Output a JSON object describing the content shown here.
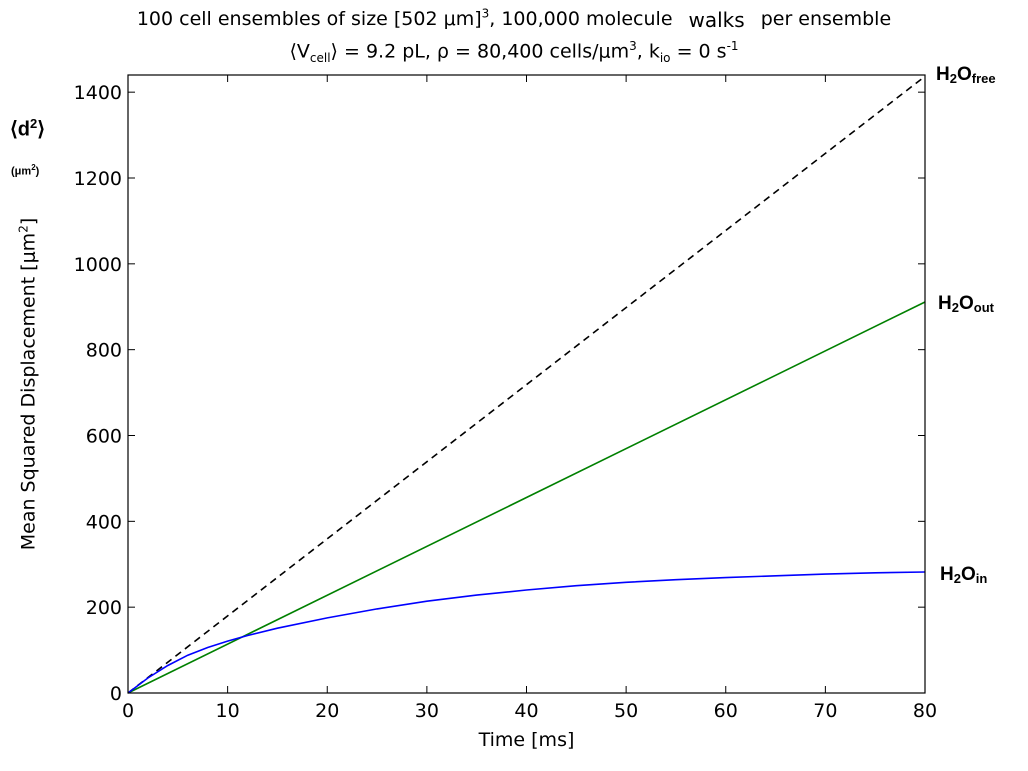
{
  "header": {
    "title_part1": "100 cell ensembles of size [502 μm]",
    "title_sup": "3",
    "title_part2": ", 100,000 molecule",
    "title_walks": "walks",
    "title_part3": "per ensemble",
    "subtitle_v_open": "⟨V",
    "subtitle_v_sub": "cell",
    "subtitle_v_close": "⟩ = 9.2 pL,  ρ = 80,400 cells/μm",
    "subtitle_rho_sup": "3",
    "subtitle_k": ",  k",
    "subtitle_k_sub": "io",
    "subtitle_k_val": " = 0 s",
    "subtitle_k_sup": "-1"
  },
  "annotations": {
    "d2_main": "⟨d",
    "d2_sup": "2",
    "d2_close": "⟩",
    "d2_unit_open": "(μm",
    "d2_unit_sup": "2",
    "d2_unit_close": ")"
  },
  "series_labels": {
    "free_main": "H",
    "free_sub2": "2",
    "free_O": "O",
    "free_sub": "free",
    "out_main": "H",
    "out_sub2": "2",
    "out_O": "O",
    "out_sub": "out",
    "in_main": "H",
    "in_sub2": "2",
    "in_O": "O",
    "in_sub": "in"
  },
  "chart_data": {
    "type": "line",
    "xlabel": "Time [ms]",
    "ylabel_main": "Mean Squared Displacement [μm",
    "ylabel_sup": "2",
    "ylabel_close": "]",
    "xlim": [
      0,
      80
    ],
    "ylim": [
      0,
      1440
    ],
    "xticks": [
      0,
      10,
      20,
      30,
      40,
      50,
      60,
      70,
      80
    ],
    "yticks": [
      0,
      200,
      400,
      600,
      800,
      1000,
      1200,
      1400
    ],
    "series": [
      {
        "color": "#000000",
        "dashed": true,
        "x": [
          0,
          80
        ],
        "y": [
          0,
          1437
        ]
      },
      {
        "color": "#008000",
        "dashed": false,
        "x": [
          0,
          80
        ],
        "y": [
          0,
          911
        ]
      },
      {
        "color": "#0000ff",
        "dashed": false,
        "x": [
          0,
          2,
          4,
          6,
          8,
          10,
          12,
          15,
          20,
          25,
          30,
          35,
          40,
          45,
          50,
          55,
          60,
          65,
          70,
          75,
          80
        ],
        "y": [
          0,
          35,
          64,
          88,
          106,
          121,
          134,
          151,
          175,
          196,
          214,
          228,
          240,
          250,
          258,
          264,
          269,
          273,
          277,
          280,
          282
        ]
      }
    ]
  }
}
